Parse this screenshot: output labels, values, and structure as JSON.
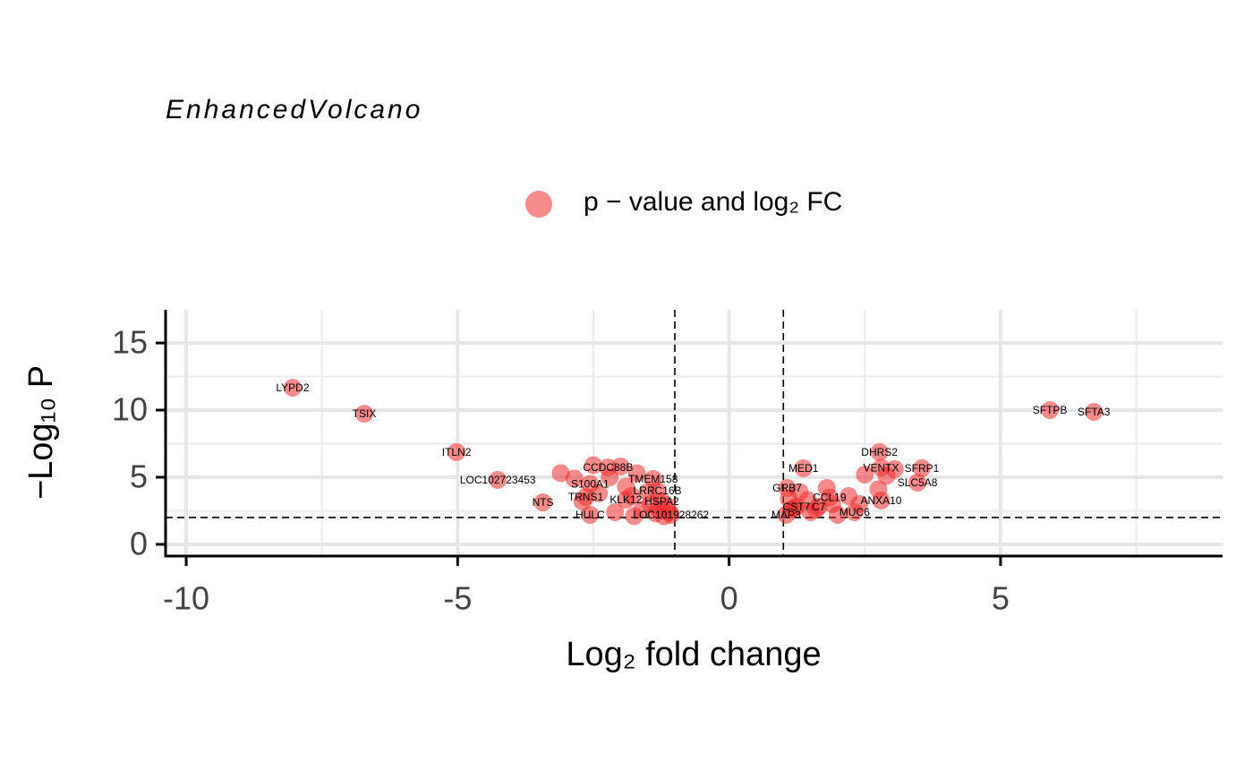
{
  "chart_data": {
    "type": "scatter",
    "title": "EnhancedVolcano",
    "x_label": "Log₂ fold change",
    "y_label": "−Log₁₀ P",
    "xlim": [
      -10.38,
      9.09
    ],
    "ylim": [
      -0.87,
      17.47
    ],
    "xticks": [
      -10,
      -5,
      0,
      5
    ],
    "yticks": [
      0,
      5,
      10,
      15
    ],
    "x_minor_grid": [
      -7.5,
      -2.5,
      2.5,
      7.5
    ],
    "y_minor_grid": [
      2.5,
      7.5,
      12.5
    ],
    "grid": true,
    "vlines": [
      -1,
      1
    ],
    "hline": 2,
    "legend": "top",
    "series": [
      {
        "name": "p − value and log₂ FC",
        "color": "#ee2c2c",
        "x": [
          -8.04,
          -6.72,
          -5.02,
          -4.26,
          -3.43,
          5.91,
          6.72,
          2.77,
          2.8,
          3.55,
          3.47,
          1.37,
          1.07,
          1.85,
          2.8,
          1.24,
          1.65,
          2.31,
          1.05,
          -2.23,
          -1.4,
          -2.56,
          -1.32,
          -2.64,
          -1.9,
          -1.24,
          -2.56,
          -1.07,
          -3.1,
          -2.85,
          -2.5,
          -2.2,
          -2.0,
          -1.9,
          -1.8,
          -1.7,
          -1.6,
          -1.5,
          -1.35,
          -1.2,
          -1.15,
          -1.1,
          -2.7,
          -2.4,
          -2.1,
          -1.75,
          -1.45,
          -1.3,
          1.1,
          1.2,
          1.3,
          1.45,
          1.6,
          1.8,
          2.0,
          2.2,
          2.5,
          2.75,
          2.9,
          3.05,
          1.15,
          1.5,
          1.9,
          2.4
        ],
        "values": [
          11.67,
          9.73,
          6.87,
          4.8,
          3.13,
          10.0,
          9.87,
          6.87,
          5.7,
          5.67,
          4.6,
          5.67,
          4.2,
          3.5,
          3.27,
          2.8,
          2.8,
          2.4,
          2.2,
          5.73,
          4.87,
          4.5,
          4.0,
          3.53,
          3.33,
          3.2,
          2.2,
          2.2,
          5.3,
          4.9,
          5.9,
          5.0,
          5.8,
          4.3,
          3.6,
          5.3,
          2.6,
          3.9,
          2.3,
          2.1,
          2.9,
          2.4,
          3.2,
          3.8,
          2.4,
          2.1,
          3.0,
          2.6,
          3.4,
          2.7,
          3.9,
          3.3,
          2.6,
          4.2,
          2.2,
          3.6,
          5.2,
          4.1,
          5.1,
          5.6,
          2.6,
          2.4,
          3.0,
          3.0
        ],
        "labels": [
          "LYPD2",
          "TSIX",
          "ITLN2",
          "LOC102723453",
          "NTS",
          "SFTPB",
          "SFTA3",
          "DHRS2",
          "VENTX",
          "SFRP1",
          "SLC5A8",
          "MED1",
          "GRB7",
          "CCL19",
          "ANXA10",
          "CST7",
          "C7",
          "MUC6",
          "MAP3",
          "CCDC88B",
          "TMEM158",
          "S100A1",
          "LRRC16B",
          "TRNS1",
          "KLK12",
          "HSPA2",
          "HULC",
          "LOC101928262",
          null,
          null,
          null,
          null,
          null,
          null,
          null,
          null,
          null,
          null,
          null,
          null,
          null,
          null,
          null,
          null,
          null,
          null,
          null,
          null,
          null,
          null,
          null,
          null,
          null,
          null,
          null,
          null,
          null,
          null,
          null,
          null,
          null,
          null,
          null,
          null
        ]
      }
    ]
  }
}
